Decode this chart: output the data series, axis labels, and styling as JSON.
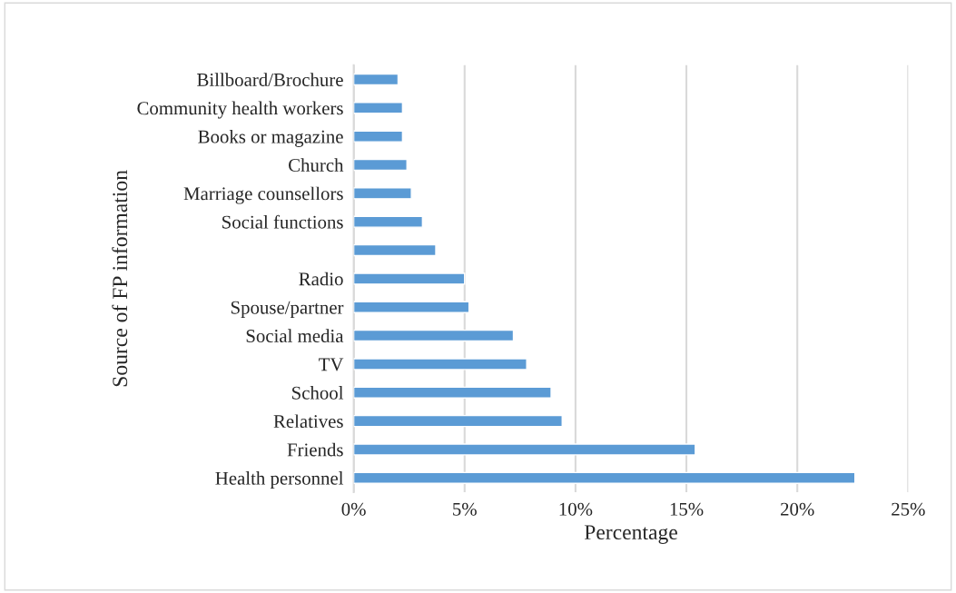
{
  "chart_data": {
    "type": "bar",
    "orientation": "horizontal",
    "xlabel": "Percentage",
    "ylabel": "Source of FP information",
    "categories": [
      "Billboard/Brochure",
      "Community health workers",
      "Books or magazine",
      "Church",
      "Marriage counsellors",
      "Social functions",
      null,
      "Radio",
      "Spouse/partner",
      "Social media",
      "TV",
      "School",
      "Relatives",
      "Friends",
      "Health personnel"
    ],
    "values": [
      2.0,
      2.2,
      2.2,
      2.4,
      2.6,
      3.1,
      3.7,
      5.0,
      5.2,
      7.2,
      7.8,
      8.9,
      9.4,
      15.4,
      22.6
    ],
    "color": "#5b9bd5",
    "xlim": [
      0,
      25
    ],
    "xticks": [
      {
        "value": 0,
        "label": "0%"
      },
      {
        "value": 5,
        "label": "5%"
      },
      {
        "value": 10,
        "label": "10%"
      },
      {
        "value": 15,
        "label": "15%"
      },
      {
        "value": 20,
        "label": "20%"
      },
      {
        "value": 25,
        "label": "25%"
      }
    ],
    "grid": "x",
    "legend": false
  }
}
